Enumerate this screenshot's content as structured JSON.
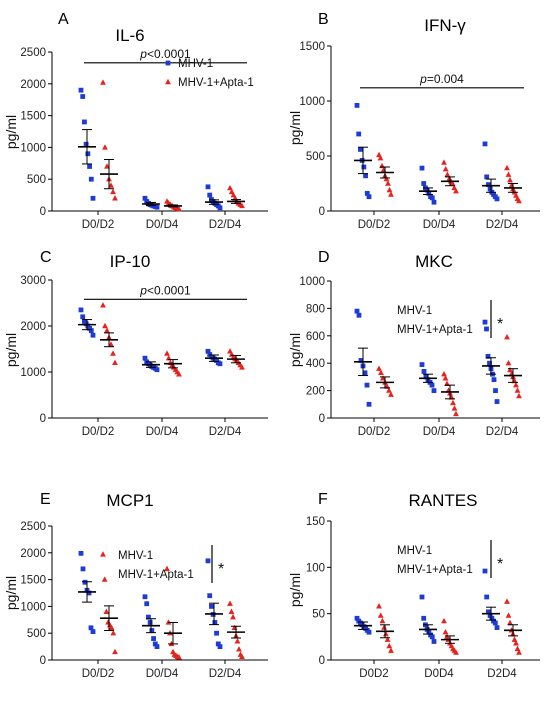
{
  "colors": {
    "mhv1": "#1f3bd6",
    "apta": "#e8221c"
  },
  "chart_data": [
    {
      "type": "scatter",
      "panel_label": "A",
      "title": "IL-6",
      "ylabel": "pg/ml",
      "ylim": [
        0,
        2500
      ],
      "yticks": [
        0,
        500,
        1000,
        1500,
        2000,
        2500
      ],
      "categories": [
        "D0/D2",
        "D0/D4",
        "D2/D4"
      ],
      "legend": {
        "placement": "top-right",
        "items": [
          "MHV-1",
          "MHV-1+Apta-1"
        ]
      },
      "annotation": {
        "text_italic": "p",
        "text": "<0.0001",
        "from": 0,
        "to": 2,
        "y": 2330
      },
      "series": [
        {
          "name": "MHV-1",
          "marker": "square",
          "groups": [
            {
              "values": [
                1900,
                1800,
                1400,
                1050,
                900,
                700,
                500,
                200
              ],
              "mean": 1010,
              "sem": 270
            },
            {
              "values": [
                200,
                150,
                120,
                100,
                90,
                80,
                70,
                60
              ],
              "mean": 110,
              "sem": 25
            },
            {
              "values": [
                380,
                250,
                180,
                150,
                120,
                100,
                80,
                50
              ],
              "mean": 140,
              "sem": 35
            }
          ]
        },
        {
          "name": "MHV-1+Apta-1",
          "marker": "triangle",
          "groups": [
            {
              "values": [
                2020,
                1000,
                700,
                500,
                400,
                300,
                200
              ],
              "mean": 580,
              "sem": 230
            },
            {
              "values": [
                150,
                120,
                100,
                80,
                60,
                50,
                40,
                30
              ],
              "mean": 80,
              "sem": 15
            },
            {
              "values": [
                360,
                300,
                250,
                200,
                150,
                120,
                100,
                80
              ],
              "mean": 150,
              "sem": 30
            }
          ]
        }
      ]
    },
    {
      "type": "scatter",
      "panel_label": "B",
      "title": "IFN-γ",
      "ylabel": "pg/ml",
      "ylim": [
        0,
        1500
      ],
      "yticks": [
        0,
        500,
        1000,
        1500
      ],
      "categories": [
        "D0/D2",
        "D0/D4",
        "D2/D4"
      ],
      "annotation": {
        "text_italic": "p",
        "text": "=0.004",
        "from": 0,
        "to": 2,
        "y": 1120
      },
      "series": [
        {
          "name": "MHV-1",
          "marker": "square",
          "groups": [
            {
              "values": [
                960,
                700,
                560,
                460,
                400,
                320,
                160,
                130
              ],
              "mean": 460,
              "sem": 120
            },
            {
              "values": [
                390,
                250,
                210,
                190,
                160,
                130,
                120,
                80
              ],
              "mean": 180,
              "sem": 30
            },
            {
              "values": [
                610,
                310,
                240,
                200,
                170,
                150,
                130,
                110
              ],
              "mean": 230,
              "sem": 60
            }
          ]
        },
        {
          "name": "MHV-1+Apta-1",
          "marker": "triangle",
          "groups": [
            {
              "values": [
                510,
                480,
                410,
                370,
                320,
                290,
                250,
                190,
                150
              ],
              "mean": 350,
              "sem": 50
            },
            {
              "values": [
                440,
                380,
                330,
                290,
                270,
                250,
                210,
                180
              ],
              "mean": 270,
              "sem": 40
            },
            {
              "values": [
                390,
                330,
                280,
                230,
                200,
                170,
                140,
                110,
                90
              ],
              "mean": 210,
              "sem": 40
            }
          ]
        }
      ]
    },
    {
      "type": "scatter",
      "panel_label": "C",
      "title": "IP-10",
      "ylabel": "pg/ml",
      "ylim": [
        0,
        3000
      ],
      "yticks": [
        0,
        1000,
        2000,
        3000
      ],
      "categories": [
        "D0/D2",
        "D0/D4",
        "D2/D4"
      ],
      "annotation": {
        "text_italic": "p",
        "text": "<0.0001",
        "from": 0,
        "to": 2,
        "y": 2580
      },
      "series": [
        {
          "name": "MHV-1",
          "marker": "square",
          "groups": [
            {
              "values": [
                2350,
                2200,
                2100,
                2050,
                2000,
                1950,
                1900,
                1800
              ],
              "mean": 2030,
              "sem": 110
            },
            {
              "values": [
                1300,
                1220,
                1180,
                1150,
                1120,
                1100,
                1080,
                1050
              ],
              "mean": 1160,
              "sem": 60
            },
            {
              "values": [
                1450,
                1380,
                1330,
                1300,
                1280,
                1250,
                1200,
                1180
              ],
              "mean": 1300,
              "sem": 70
            }
          ]
        },
        {
          "name": "MHV-1+Apta-1",
          "marker": "triangle",
          "groups": [
            {
              "values": [
                2450,
                2000,
                1900,
                1750,
                1600,
                1400,
                1200
              ],
              "mean": 1700,
              "sem": 150
            },
            {
              "values": [
                1400,
                1300,
                1200,
                1150,
                1100,
                1050,
                1000,
                950
              ],
              "mean": 1180,
              "sem": 90
            },
            {
              "values": [
                1450,
                1380,
                1320,
                1280,
                1250,
                1200,
                1150,
                1100
              ],
              "mean": 1280,
              "sem": 80
            }
          ]
        }
      ]
    },
    {
      "type": "scatter",
      "panel_label": "D",
      "title": "MKC",
      "ylabel": "pg/ml",
      "ylim": [
        0,
        1000
      ],
      "yticks": [
        0,
        200,
        400,
        600,
        800,
        1000
      ],
      "categories": [
        "D0/D2",
        "D0/D4",
        "D2/D4"
      ],
      "legend_text": [
        "MHV-1",
        "MHV-1+Apta-1"
      ],
      "star": "*",
      "series": [
        {
          "name": "MHV-1",
          "marker": "square",
          "groups": [
            {
              "values": [
                780,
                750,
                420,
                380,
                330,
                240,
                100
              ],
              "mean": 410,
              "sem": 100
            },
            {
              "values": [
                390,
                340,
                300,
                280,
                260,
                240,
                200
              ],
              "mean": 290,
              "sem": 30
            },
            {
              "values": [
                700,
                650,
                450,
                400,
                360,
                320,
                280,
                200,
                120
              ],
              "mean": 380,
              "sem": 60
            }
          ]
        },
        {
          "name": "MHV-1+Apta-1",
          "marker": "triangle",
          "groups": [
            {
              "values": [
                360,
                330,
                290,
                260,
                230,
                200,
                170
              ],
              "mean": 260,
              "sem": 40
            },
            {
              "values": [
                320,
                290,
                250,
                200,
                180,
                150,
                110,
                70,
                30
              ],
              "mean": 190,
              "sem": 50
            },
            {
              "values": [
                590,
                400,
                350,
                320,
                300,
                270,
                240,
                200,
                160
              ],
              "mean": 310,
              "sem": 50
            }
          ]
        }
      ]
    },
    {
      "type": "scatter",
      "panel_label": "E",
      "title": "MCP1",
      "ylabel": "pg/ml",
      "ylim": [
        0,
        2500
      ],
      "yticks": [
        0,
        500,
        1000,
        1500,
        2000,
        2500
      ],
      "categories": [
        "D0/D2",
        "D0/D4",
        "D2/D4"
      ],
      "legend_text": [
        "MHV-1",
        "MHV-1+Apta-1"
      ],
      "star": "*",
      "series": [
        {
          "name": "MHV-1",
          "marker": "square",
          "groups": [
            {
              "values": [
                1990,
                1700,
                1450,
                1300,
                1250,
                600,
                530
              ],
              "mean": 1270,
              "sem": 190
            },
            {
              "values": [
                1180,
                1050,
                800,
                700,
                550,
                400,
                300,
                250
              ],
              "mean": 640,
              "sem": 130
            },
            {
              "values": [
                1850,
                1200,
                1000,
                850,
                700,
                500,
                300,
                250
              ],
              "mean": 860,
              "sem": 200
            }
          ]
        },
        {
          "name": "MHV-1+Apta-1",
          "marker": "triangle",
          "groups": [
            {
              "values": [
                1970,
                1500,
                900,
                700,
                650,
                600,
                500,
                150
              ],
              "mean": 780,
              "sem": 230
            },
            {
              "values": [
                1700,
                700,
                500,
                300,
                150,
                100,
                80,
                60,
                50
              ],
              "mean": 500,
              "sem": 200
            },
            {
              "values": [
                1050,
                900,
                800,
                600,
                450,
                350,
                200,
                100,
                60
              ],
              "mean": 520,
              "sem": 110
            }
          ]
        }
      ]
    },
    {
      "type": "scatter",
      "panel_label": "F",
      "title": "RANTES",
      "ylabel": "pg/ml",
      "ylim": [
        0,
        150
      ],
      "yticks": [
        0,
        50,
        100,
        150
      ],
      "categories": [
        "D0D2",
        "D0D4",
        "D2D4"
      ],
      "legend_text": [
        "MHV-1",
        "MHV-1+Apta-1"
      ],
      "star": "*",
      "series": [
        {
          "name": "MHV-1",
          "marker": "square",
          "groups": [
            {
              "values": [
                45,
                42,
                40,
                38,
                36,
                34,
                32,
                30
              ],
              "mean": 37,
              "sem": 4
            },
            {
              "values": [
                68,
                45,
                38,
                33,
                30,
                27,
                25,
                20
              ],
              "mean": 33,
              "sem": 5
            },
            {
              "values": [
                96,
                68,
                52,
                48,
                45,
                42,
                40,
                35
              ],
              "mean": 50,
              "sem": 7
            }
          ]
        },
        {
          "name": "MHV-1+Apta-1",
          "marker": "triangle",
          "groups": [
            {
              "values": [
                58,
                48,
                42,
                35,
                28,
                22,
                15,
                10
              ],
              "mean": 31,
              "sem": 7
            },
            {
              "values": [
                42,
                30,
                25,
                22,
                18,
                15,
                12,
                10,
                8
              ],
              "mean": 22,
              "sem": 4
            },
            {
              "values": [
                63,
                48,
                40,
                32,
                28,
                22,
                18,
                12,
                8
              ],
              "mean": 32,
              "sem": 6
            }
          ]
        }
      ]
    }
  ]
}
